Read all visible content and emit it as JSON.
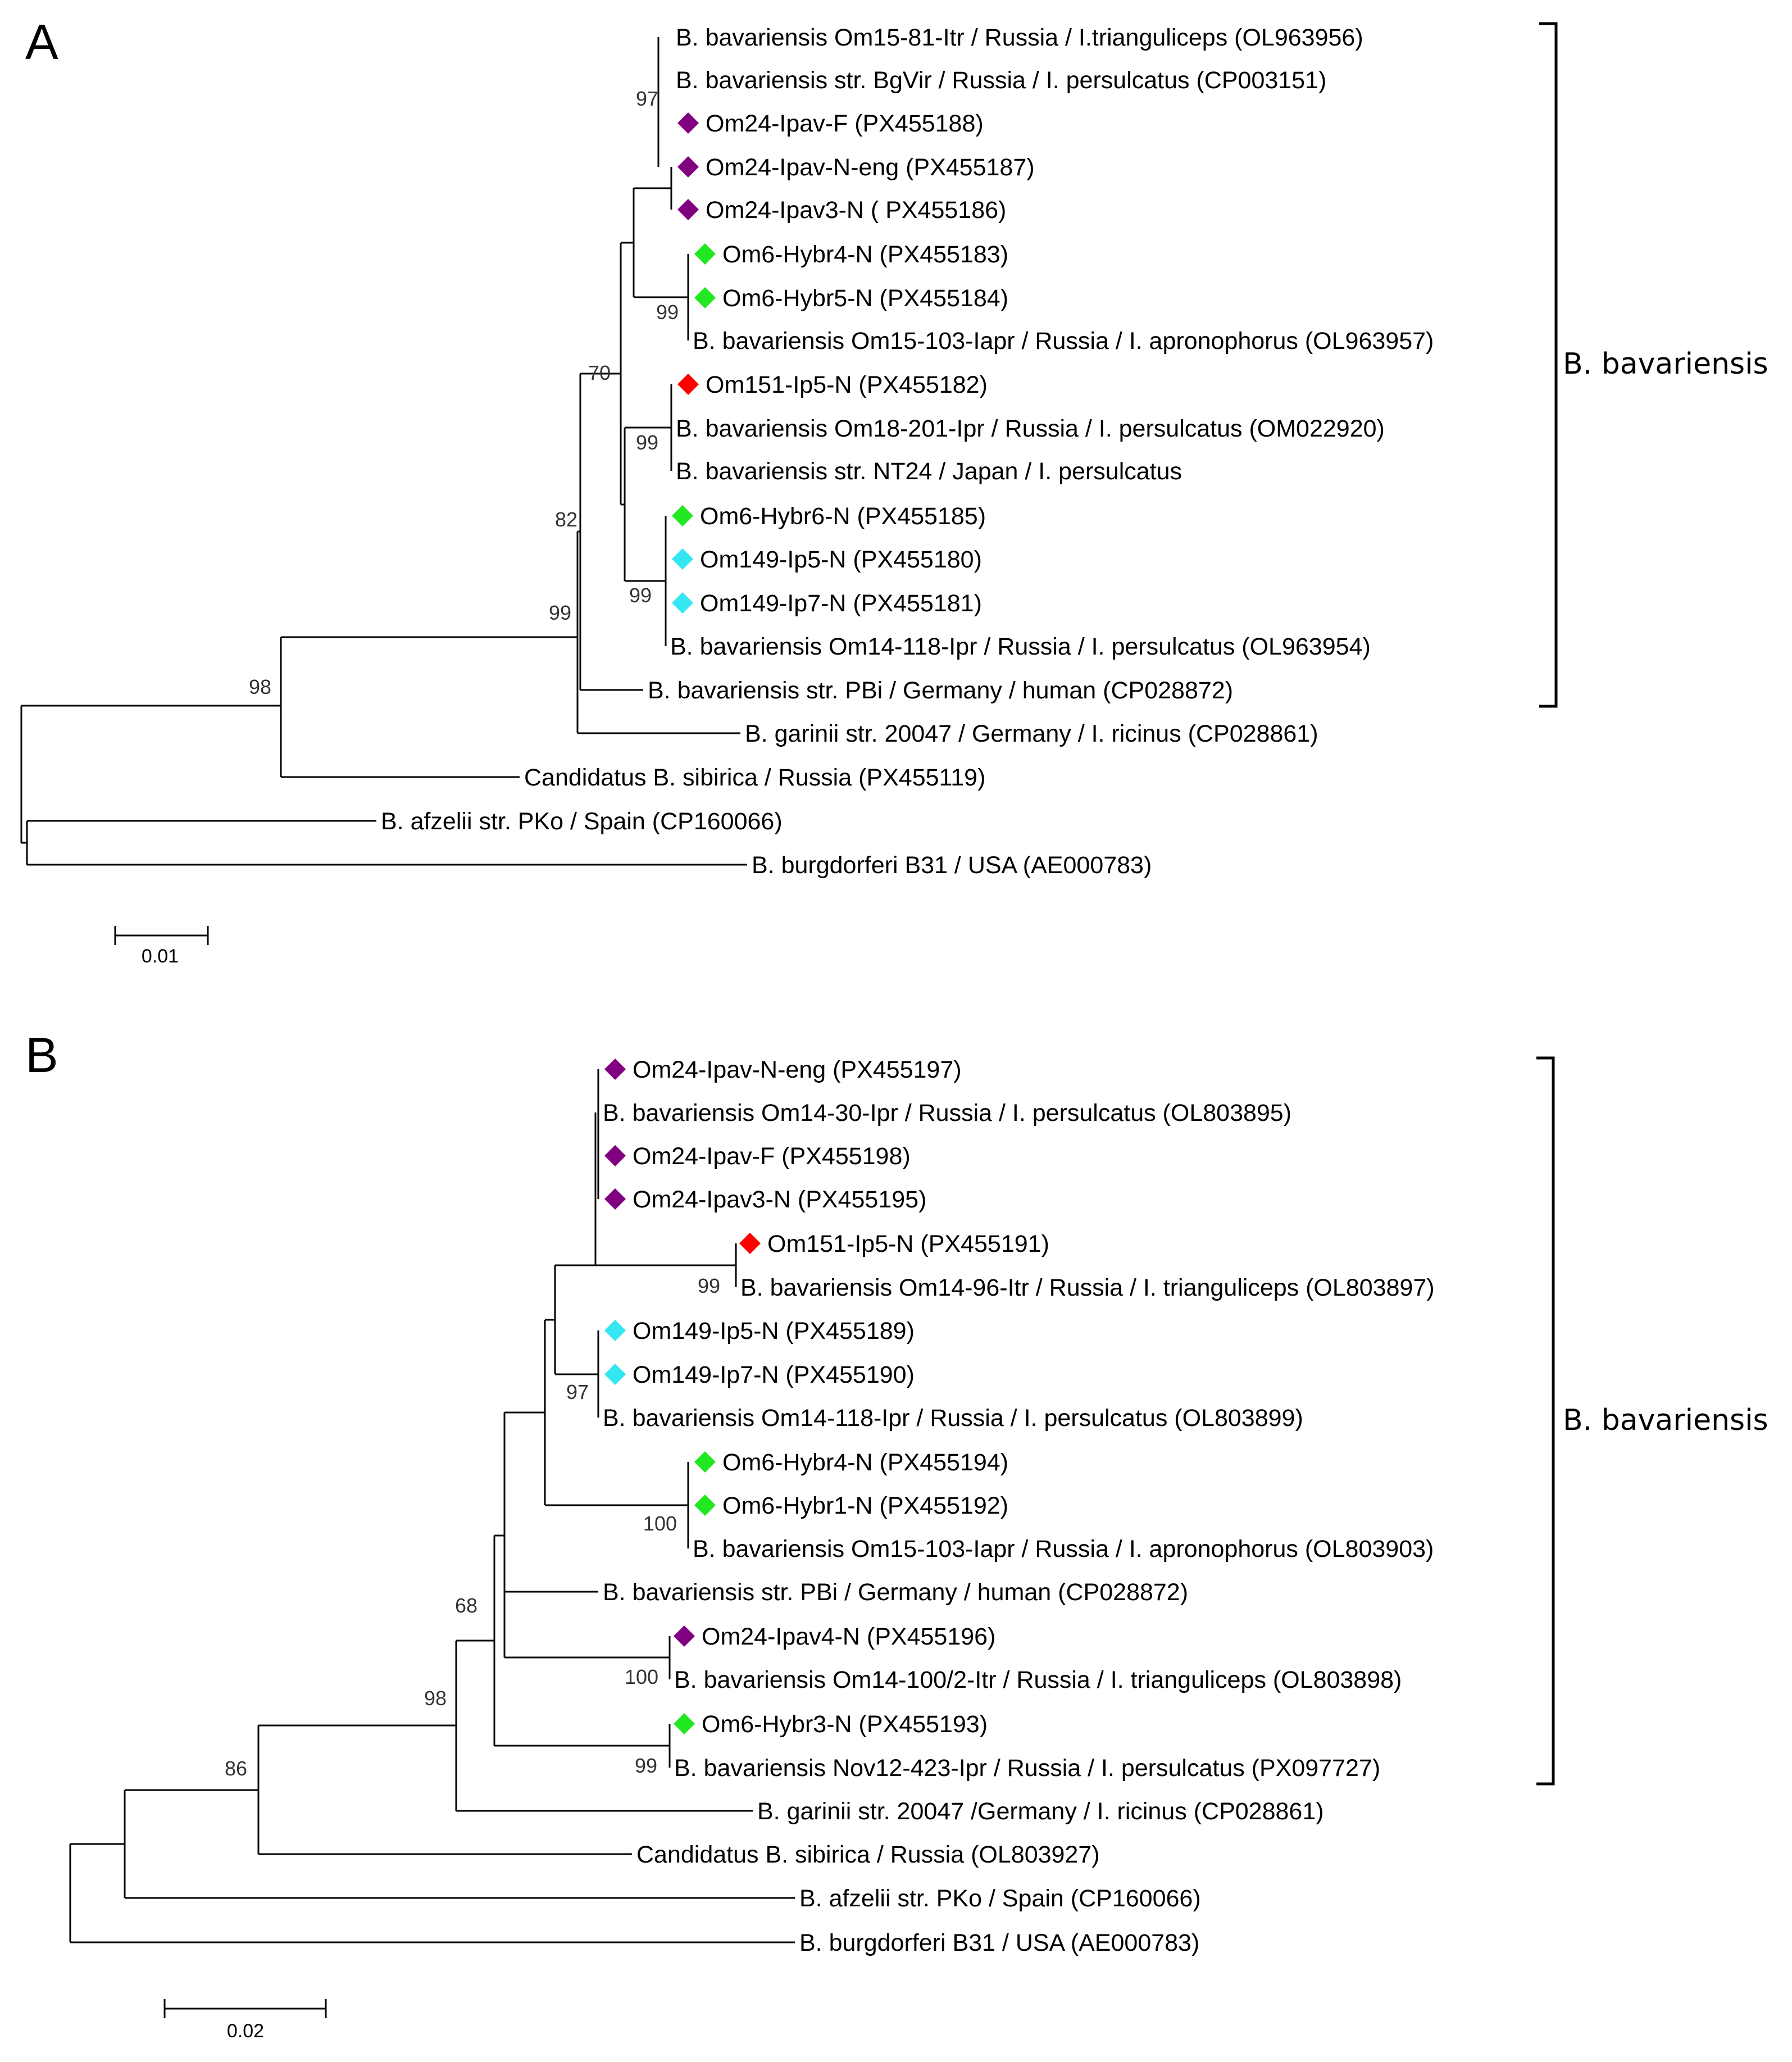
{
  "colors": {
    "purple": "#800080",
    "green": "#22e822",
    "red": "#ff0000",
    "cyan": "#33e6f2",
    "line": "#000000"
  },
  "panels": [
    {
      "letter": "A",
      "clade": {
        "label": "B. bavariensis",
        "first_leaf": 0,
        "last_leaf": 15
      },
      "scale": {
        "value": 0.01,
        "label": "0.01"
      },
      "leaves": [
        {
          "label": "B. bavariensis Om15-81-Itr / Russia / I.trianguliceps (OL963956)",
          "marker": null
        },
        {
          "label": "B. bavariensis str. BgVir / Russia / I. persulcatus (CP003151)",
          "marker": null
        },
        {
          "label": "Om24-Ipav-F (PX455188)",
          "marker": "purple"
        },
        {
          "label": "Om24-Ipav-N-eng (PX455187)",
          "marker": "purple"
        },
        {
          "label": "Om24-Ipav3-N ( PX455186)",
          "marker": "purple"
        },
        {
          "label": "Om6-Hybr4-N (PX455183)",
          "marker": "green"
        },
        {
          "label": "Om6-Hybr5-N (PX455184)",
          "marker": "green"
        },
        {
          "label": "B. bavariensis Om15-103-Iapr / Russia / I. apronophorus (OL963957)",
          "marker": null
        },
        {
          "label": "Om151-Ip5-N (PX455182)",
          "marker": "red"
        },
        {
          "label": "B. bavariensis Om18-201-Ipr / Russia / I. persulcatus (OM022920)",
          "marker": null
        },
        {
          "label": "B. bavariensis str. NT24 / Japan / I. persulcatus",
          "marker": null
        },
        {
          "label": "Om6-Hybr6-N (PX455185)",
          "marker": "green"
        },
        {
          "label": "Om149-Ip5-N (PX455180)",
          "marker": "cyan"
        },
        {
          "label": "Om149-Ip7-N (PX455181)",
          "marker": "cyan"
        },
        {
          "label": "B. bavariensis Om14-118-Ipr / Russia / I. persulcatus (OL963954)",
          "marker": null
        },
        {
          "label": "B. bavariensis str. PBi / Germany / human (CP028872)",
          "marker": null
        },
        {
          "label": "B. garinii str. 20047 / Germany / I. ricinus (CP028861)",
          "marker": null
        },
        {
          "label": "Candidatus B. sibirica / Russia (PX455119)",
          "marker": null
        },
        {
          "label": "B. afzelii str. PKo / Spain (CP160066)",
          "marker": null
        },
        {
          "label": "B. burgdorferi B31 / USA (AE000783)",
          "marker": null
        }
      ],
      "bootstrap": [
        "97",
        "99",
        "70",
        "99",
        "99",
        "82",
        "99",
        "98"
      ]
    },
    {
      "letter": "B",
      "clade": {
        "label": "B. bavariensis",
        "first_leaf": 0,
        "last_leaf": 16
      },
      "scale": {
        "value": 0.02,
        "label": "0.02"
      },
      "leaves": [
        {
          "label": "Om24-Ipav-N-eng (PX455197)",
          "marker": "purple"
        },
        {
          "label": "B. bavariensis Om14-30-Ipr / Russia / I. persulcatus (OL803895)",
          "marker": null
        },
        {
          "label": "Om24-Ipav-F (PX455198)",
          "marker": "purple"
        },
        {
          "label": "Om24-Ipav3-N (PX455195)",
          "marker": "purple"
        },
        {
          "label": "Om151-Ip5-N (PX455191)",
          "marker": "red"
        },
        {
          "label": "B. bavariensis Om14-96-Itr / Russia / I. trianguliceps (OL803897)",
          "marker": null
        },
        {
          "label": "Om149-Ip5-N (PX455189)",
          "marker": "cyan"
        },
        {
          "label": "Om149-Ip7-N (PX455190)",
          "marker": "cyan"
        },
        {
          "label": "B. bavariensis Om14-118-Ipr / Russia / I. persulcatus (OL803899)",
          "marker": null
        },
        {
          "label": "Om6-Hybr4-N (PX455194)",
          "marker": "green"
        },
        {
          "label": "Om6-Hybr1-N (PX455192)",
          "marker": "green"
        },
        {
          "label": "B. bavariensis Om15-103-Iapr / Russia / I. apronophorus (OL803903)",
          "marker": null
        },
        {
          "label": "B. bavariensis str. PBi / Germany / human (CP028872)",
          "marker": null
        },
        {
          "label": "Om24-Ipav4-N (PX455196)",
          "marker": "purple"
        },
        {
          "label": "B. bavariensis Om14-100/2-Itr / Russia / I. trianguliceps (OL803898)",
          "marker": null
        },
        {
          "label": "Om6-Hybr3-N (PX455193)",
          "marker": "green"
        },
        {
          "label": "B. bavariensis Nov12-423-Ipr / Russia / I. persulcatus (PX097727)",
          "marker": null
        },
        {
          "label": "B. garinii str. 20047 /Germany / I. ricinus (CP028861)",
          "marker": null
        },
        {
          "label": "Candidatus B. sibirica / Russia (OL803927)",
          "marker": null
        },
        {
          "label": "B. afzelii str. PKo / Spain (CP160066)",
          "marker": null
        },
        {
          "label": "B. burgdorferi B31 / USA (AE000783)",
          "marker": null
        }
      ],
      "bootstrap": [
        "99",
        "97",
        "100",
        "100",
        "99",
        "68",
        "98",
        "86"
      ]
    }
  ]
}
